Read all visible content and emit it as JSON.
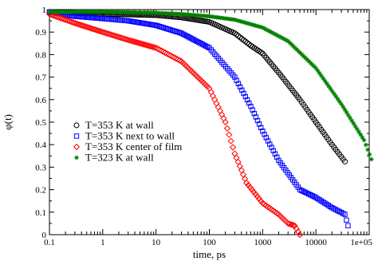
{
  "chart_data": {
    "type": "scatter",
    "xlabel": "time, ps",
    "ylabel": "φ(t)",
    "xscale": "log",
    "xlim": [
      0.1,
      100000
    ],
    "ylim": [
      0,
      1
    ],
    "x_ticks": [
      0.1,
      1,
      10,
      100,
      1000,
      10000,
      100000
    ],
    "x_tick_labels": [
      "0.1",
      "1",
      "10",
      "100",
      "1000",
      "10000",
      "1e+05"
    ],
    "y_ticks": [
      0,
      0.1,
      0.2,
      0.3,
      0.4,
      0.5,
      0.6,
      0.7,
      0.8,
      0.9,
      1
    ],
    "y_tick_labels": [
      "0",
      "0.1",
      "0.2",
      "0.3",
      "0.4",
      "0.5",
      "0.6",
      "0.7",
      "0.8",
      "0.9",
      "1"
    ],
    "grid": false,
    "legend_position": "bottom-left",
    "series": [
      {
        "name": "T=353 K at wall",
        "marker": "circle",
        "color": "#000000",
        "x": [
          0.1,
          0.3,
          1,
          3,
          10,
          30,
          100,
          300,
          600,
          1000,
          2000,
          5000,
          10000,
          20000,
          35000
        ],
        "y": [
          0.99,
          0.985,
          0.98,
          0.978,
          0.975,
          0.965,
          0.945,
          0.895,
          0.84,
          0.805,
          0.72,
          0.6,
          0.5,
          0.4,
          0.325
        ]
      },
      {
        "name": "T=353 K next to wall",
        "marker": "square",
        "color": "#0000ff",
        "x": [
          0.1,
          0.3,
          1,
          3,
          10,
          30,
          100,
          300,
          600,
          1000,
          2000,
          5000,
          10000,
          20000,
          35000,
          40000
        ],
        "y": [
          0.99,
          0.97,
          0.96,
          0.95,
          0.93,
          0.895,
          0.83,
          0.7,
          0.57,
          0.46,
          0.33,
          0.2,
          0.165,
          0.12,
          0.09,
          0.04
        ]
      },
      {
        "name": "T=353 K center of film",
        "marker": "diamond",
        "color": "#ff0000",
        "x": [
          0.1,
          0.3,
          1,
          3,
          10,
          30,
          100,
          200,
          300,
          500,
          1000,
          2000,
          3000,
          4000,
          5000
        ],
        "y": [
          0.98,
          0.94,
          0.9,
          0.865,
          0.83,
          0.77,
          0.65,
          0.5,
          0.36,
          0.23,
          0.14,
          0.09,
          0.05,
          0.04,
          0.0
        ]
      },
      {
        "name": "T=323 K at wall",
        "marker": "star",
        "color": "#008000",
        "x": [
          0.1,
          0.3,
          1,
          3,
          10,
          30,
          100,
          300,
          1000,
          3000,
          10000,
          30000,
          80000,
          110000
        ],
        "y": [
          0.99,
          0.99,
          0.99,
          0.988,
          0.985,
          0.98,
          0.97,
          0.955,
          0.92,
          0.86,
          0.74,
          0.58,
          0.42,
          0.335
        ]
      }
    ]
  }
}
